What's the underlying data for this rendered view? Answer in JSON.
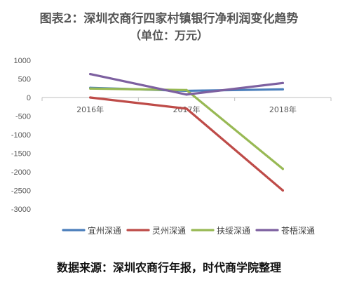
{
  "chart_data": {
    "type": "line",
    "title": "图表2：深圳农商行四家村镇银行净利润变化趋势",
    "subtitle": "（单位：万元）",
    "categories": [
      "2016年",
      "2017年",
      "2018年"
    ],
    "ylim": [
      -3000,
      1000
    ],
    "yticks": [
      1000,
      500,
      0,
      -500,
      -1000,
      -1500,
      -2000,
      -2500,
      -3000
    ],
    "grid": false,
    "legend_position": "bottom",
    "series": [
      {
        "name": "宜州深通",
        "color": "#4a7ebb",
        "values": [
          260,
          180,
          220
        ]
      },
      {
        "name": "灵州深通",
        "color": "#be4b48",
        "values": [
          0,
          -300,
          -2500
        ]
      },
      {
        "name": "扶绥深通",
        "color": "#98b954",
        "values": [
          240,
          200,
          -1920
        ]
      },
      {
        "name": "苍梧深通",
        "color": "#7d60a0",
        "values": [
          630,
          80,
          390
        ]
      }
    ]
  },
  "source": "数据来源：深圳农商行年报，时代商学院整理"
}
